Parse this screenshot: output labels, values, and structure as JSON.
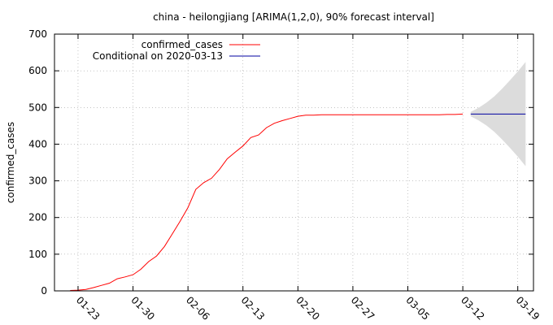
{
  "chart_data": {
    "type": "line",
    "title": "china - heilongjiang [ARIMA(1,2,0), 90% forecast interval]",
    "xlabel": "",
    "ylabel": "confirmed_cases",
    "ylim": [
      0,
      700
    ],
    "xlim": [
      "2020-01-20",
      "2020-03-21"
    ],
    "y_ticks": [
      0,
      100,
      200,
      300,
      400,
      500,
      600,
      700
    ],
    "x_ticks": [
      {
        "date": "2020-01-23",
        "label": "01-23"
      },
      {
        "date": "2020-01-30",
        "label": "01-30"
      },
      {
        "date": "2020-02-06",
        "label": "02-06"
      },
      {
        "date": "2020-02-13",
        "label": "02-13"
      },
      {
        "date": "2020-02-20",
        "label": "02-20"
      },
      {
        "date": "2020-02-27",
        "label": "02-27"
      },
      {
        "date": "2020-03-05",
        "label": "03-05"
      },
      {
        "date": "2020-03-12",
        "label": "03-12"
      },
      {
        "date": "2020-03-19",
        "label": "03-19"
      }
    ],
    "grid": true,
    "legend_position": "top-left",
    "series": [
      {
        "name": "confirmed_cases",
        "color": "#ff0000",
        "x": [
          "2020-01-22",
          "2020-01-23",
          "2020-01-24",
          "2020-01-25",
          "2020-01-26",
          "2020-01-27",
          "2020-01-28",
          "2020-01-29",
          "2020-01-30",
          "2020-01-31",
          "2020-02-01",
          "2020-02-02",
          "2020-02-03",
          "2020-02-04",
          "2020-02-05",
          "2020-02-06",
          "2020-02-07",
          "2020-02-08",
          "2020-02-09",
          "2020-02-10",
          "2020-02-11",
          "2020-02-12",
          "2020-02-13",
          "2020-02-14",
          "2020-02-15",
          "2020-02-16",
          "2020-02-17",
          "2020-02-18",
          "2020-02-19",
          "2020-02-20",
          "2020-02-21",
          "2020-02-22",
          "2020-02-23",
          "2020-02-24",
          "2020-02-25",
          "2020-02-26",
          "2020-02-27",
          "2020-02-28",
          "2020-02-29",
          "2020-03-01",
          "2020-03-02",
          "2020-03-03",
          "2020-03-04",
          "2020-03-05",
          "2020-03-06",
          "2020-03-07",
          "2020-03-08",
          "2020-03-09",
          "2020-03-10",
          "2020-03-11",
          "2020-03-12"
        ],
        "y": [
          1,
          2,
          4,
          9,
          15,
          21,
          33,
          38,
          44,
          59,
          80,
          95,
          121,
          155,
          190,
          227,
          277,
          295,
          307,
          331,
          360,
          378,
          395,
          418,
          425,
          445,
          457,
          464,
          470,
          476,
          479,
          479,
          480,
          480,
          480,
          480,
          480,
          480,
          480,
          480,
          480,
          480,
          480,
          480,
          480,
          480,
          480,
          480,
          481,
          481,
          482
        ]
      },
      {
        "name": "Conditional on 2020-03-13",
        "color": "#0000a0",
        "x": [
          "2020-03-13",
          "2020-03-14",
          "2020-03-15",
          "2020-03-16",
          "2020-03-17",
          "2020-03-18",
          "2020-03-19",
          "2020-03-20"
        ],
        "y": [
          482,
          482,
          482,
          482,
          482,
          482,
          482,
          482
        ]
      }
    ],
    "forecast_interval": {
      "color": "#dcdcdc",
      "x": [
        "2020-03-13",
        "2020-03-14",
        "2020-03-15",
        "2020-03-16",
        "2020-03-17",
        "2020-03-18",
        "2020-03-19",
        "2020-03-20"
      ],
      "lower": [
        476,
        465,
        451,
        434,
        413,
        390,
        366,
        340
      ],
      "upper": [
        488,
        499,
        513,
        530,
        551,
        574,
        598,
        624
      ]
    }
  }
}
